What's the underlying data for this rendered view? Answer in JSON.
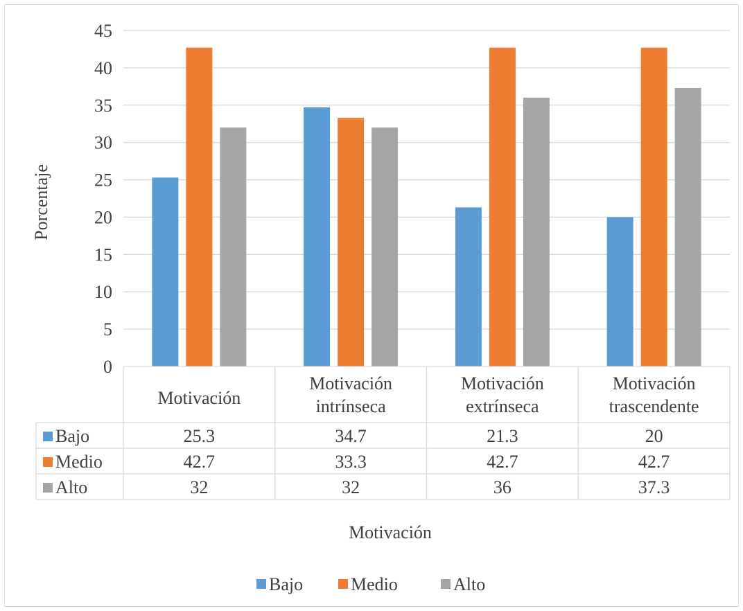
{
  "chart_data": {
    "type": "bar",
    "title": "",
    "xlabel": "Motivación",
    "ylabel": "Porcentaje",
    "ylim": [
      0,
      45
    ],
    "yticks": [
      0,
      5,
      10,
      15,
      20,
      25,
      30,
      35,
      40,
      45
    ],
    "grid": true,
    "legend_position": "bottom",
    "data_table": true,
    "categories": [
      [
        "Motivación"
      ],
      [
        "Motivación",
        "intrínseca"
      ],
      [
        "Motivación",
        "extrínseca"
      ],
      [
        "Motivación",
        "trascendente"
      ]
    ],
    "series": [
      {
        "name": "Bajo",
        "color": "#5b9bd5",
        "values": [
          25.3,
          34.7,
          21.3,
          20
        ]
      },
      {
        "name": "Medio",
        "color": "#ed7d31",
        "values": [
          42.7,
          33.3,
          42.7,
          42.7
        ]
      },
      {
        "name": "Alto",
        "color": "#a5a5a5",
        "values": [
          32,
          32,
          36,
          37.3
        ]
      }
    ],
    "table_values": [
      [
        "25.3",
        "34.7",
        "21.3",
        "20"
      ],
      [
        "42.7",
        "33.3",
        "42.7",
        "42.7"
      ],
      [
        "32",
        "32",
        "36",
        "37.3"
      ]
    ],
    "gridline_color": "#d9d9d9"
  }
}
